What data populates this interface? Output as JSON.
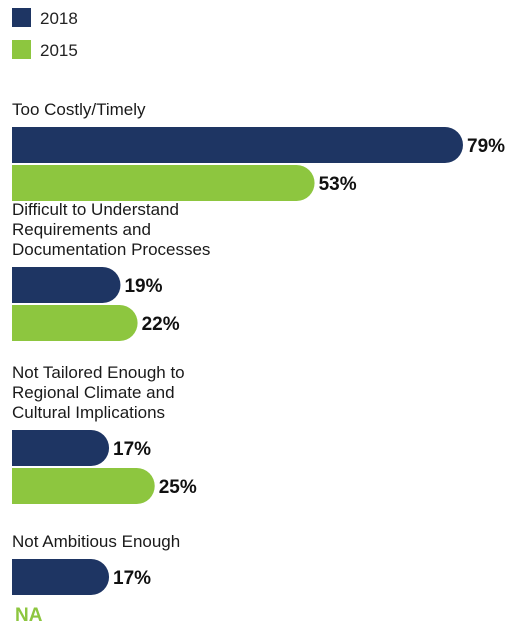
{
  "chart_data": {
    "type": "bar",
    "orientation": "horizontal",
    "legend_position": "top-left",
    "grid": false,
    "xlim": [
      0,
      79
    ],
    "series": [
      {
        "name": "2018",
        "color": "#1e3563"
      },
      {
        "name": "2015",
        "color": "#8dc63f"
      }
    ],
    "categories": [
      {
        "label_lines": [
          "Too Costly/Timely"
        ],
        "values": [
          79,
          53
        ],
        "value_labels": [
          "79%",
          "53%"
        ]
      },
      {
        "label_lines": [
          "Difficult to Understand",
          "Requirements and",
          "Documentation Processes"
        ],
        "values": [
          19,
          22
        ],
        "value_labels": [
          "19%",
          "22%"
        ]
      },
      {
        "label_lines": [
          "Not Tailored Enough to",
          "Regional Climate and",
          "Cultural Implications"
        ],
        "values": [
          17,
          25
        ],
        "value_labels": [
          "17%",
          "25%"
        ]
      },
      {
        "label_lines": [
          "Not Ambitious Enough"
        ],
        "values": [
          17,
          null
        ],
        "value_labels": [
          "17%",
          "NA"
        ]
      }
    ]
  }
}
